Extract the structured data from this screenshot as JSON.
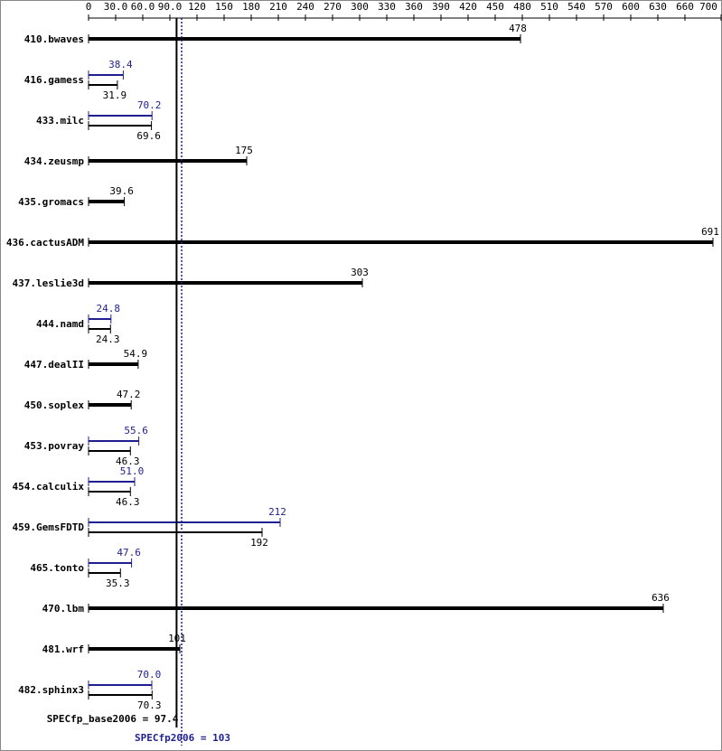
{
  "chart_data": {
    "type": "bar",
    "categories": [
      "410.bwaves",
      "416.gamess",
      "433.milc",
      "434.zeusmp",
      "435.gromacs",
      "436.cactusADM",
      "437.leslie3d",
      "444.namd",
      "447.dealII",
      "450.soplex",
      "453.povray",
      "454.calculix",
      "459.GemsFDTD",
      "465.tonto",
      "470.lbm",
      "481.wrf",
      "482.sphinx3"
    ],
    "series": [
      {
        "color": "#000000",
        "values": [
          478,
          31.9,
          69.6,
          175,
          39.6,
          691,
          303,
          24.3,
          54.9,
          47.2,
          46.3,
          46.3,
          192,
          35.3,
          636,
          101,
          70.3
        ]
      },
      {
        "color": "#1f1f8f",
        "values": [
          null,
          38.4,
          70.2,
          null,
          null,
          null,
          null,
          24.8,
          null,
          null,
          55.6,
          51.0,
          212,
          47.6,
          null,
          null,
          70.0
        ],
        "value_labels": [
          null,
          null,
          null,
          null,
          null,
          null,
          null,
          null,
          null,
          null,
          null,
          "51.0",
          null,
          null,
          null,
          null,
          "70.0"
        ]
      }
    ],
    "xlim": [
      0,
      700
    ],
    "xticks": [
      0,
      {
        "value": 30,
        "label": "30.0"
      },
      {
        "value": 60,
        "label": "60.0"
      },
      {
        "value": 90,
        "label": "90.0"
      },
      120,
      150,
      180,
      210,
      240,
      270,
      300,
      330,
      360,
      390,
      420,
      450,
      480,
      510,
      540,
      570,
      600,
      630,
      660,
      700
    ],
    "reference_lines": [
      {
        "label": "SPECfp_base2006 = 97.4",
        "value": 97.4,
        "color": "#000000"
      },
      {
        "label": "SPECfp2006 = 103",
        "value": 103,
        "color": "#1f1f8f"
      }
    ]
  }
}
